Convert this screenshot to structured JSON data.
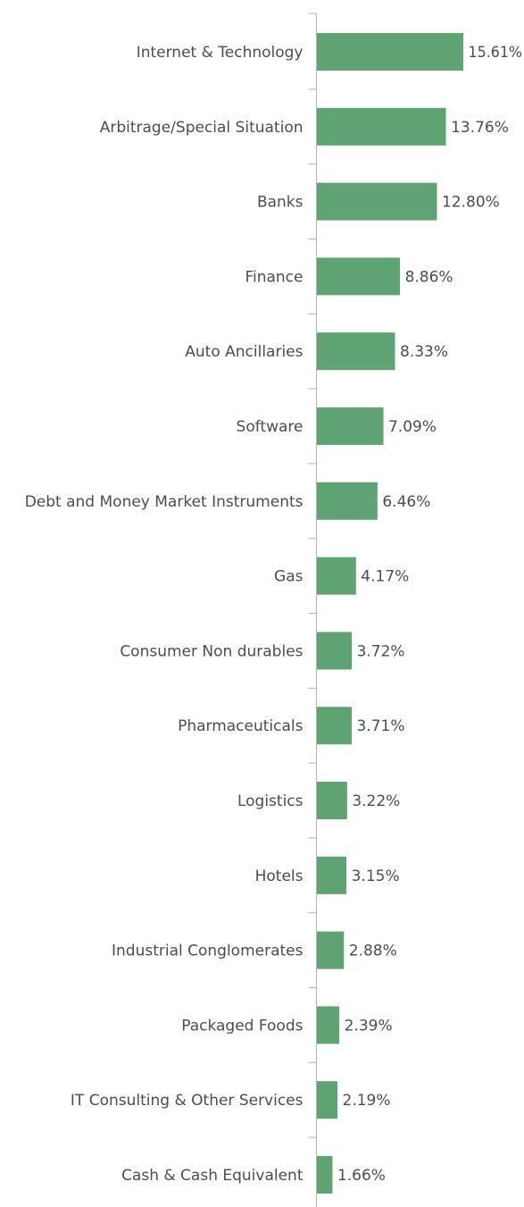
{
  "chart_data": {
    "type": "bar",
    "orientation": "horizontal",
    "categories": [
      "Internet & Technology",
      "Arbitrage/Special Situation",
      "Banks",
      "Finance",
      "Auto Ancillaries",
      "Software",
      "Debt and Money Market Instruments",
      "Gas",
      "Consumer Non durables",
      "Pharmaceuticals",
      "Logistics",
      "Hotels",
      "Industrial Conglomerates",
      "Packaged Foods",
      "IT Consulting & Other Services",
      "Cash & Cash Equivalent"
    ],
    "values": [
      15.61,
      13.76,
      12.8,
      8.86,
      8.33,
      7.09,
      6.46,
      4.17,
      3.72,
      3.71,
      3.22,
      3.15,
      2.88,
      2.39,
      2.19,
      1.66
    ],
    "value_labels": [
      "15.61%",
      "13.76%",
      "12.80%",
      "8.86%",
      "8.33%",
      "7.09%",
      "6.46%",
      "4.17%",
      "3.72%",
      "3.71%",
      "3.22%",
      "3.15%",
      "2.88%",
      "2.39%",
      "2.19%",
      "1.66%"
    ],
    "title": "",
    "xlabel": "",
    "ylabel": "",
    "xlim": [
      0,
      15.61
    ],
    "grid": false,
    "legend": "none",
    "bar_color": "#5fa372",
    "axis_color": "#b3b3b3",
    "label_color": "#4d4d4d"
  }
}
